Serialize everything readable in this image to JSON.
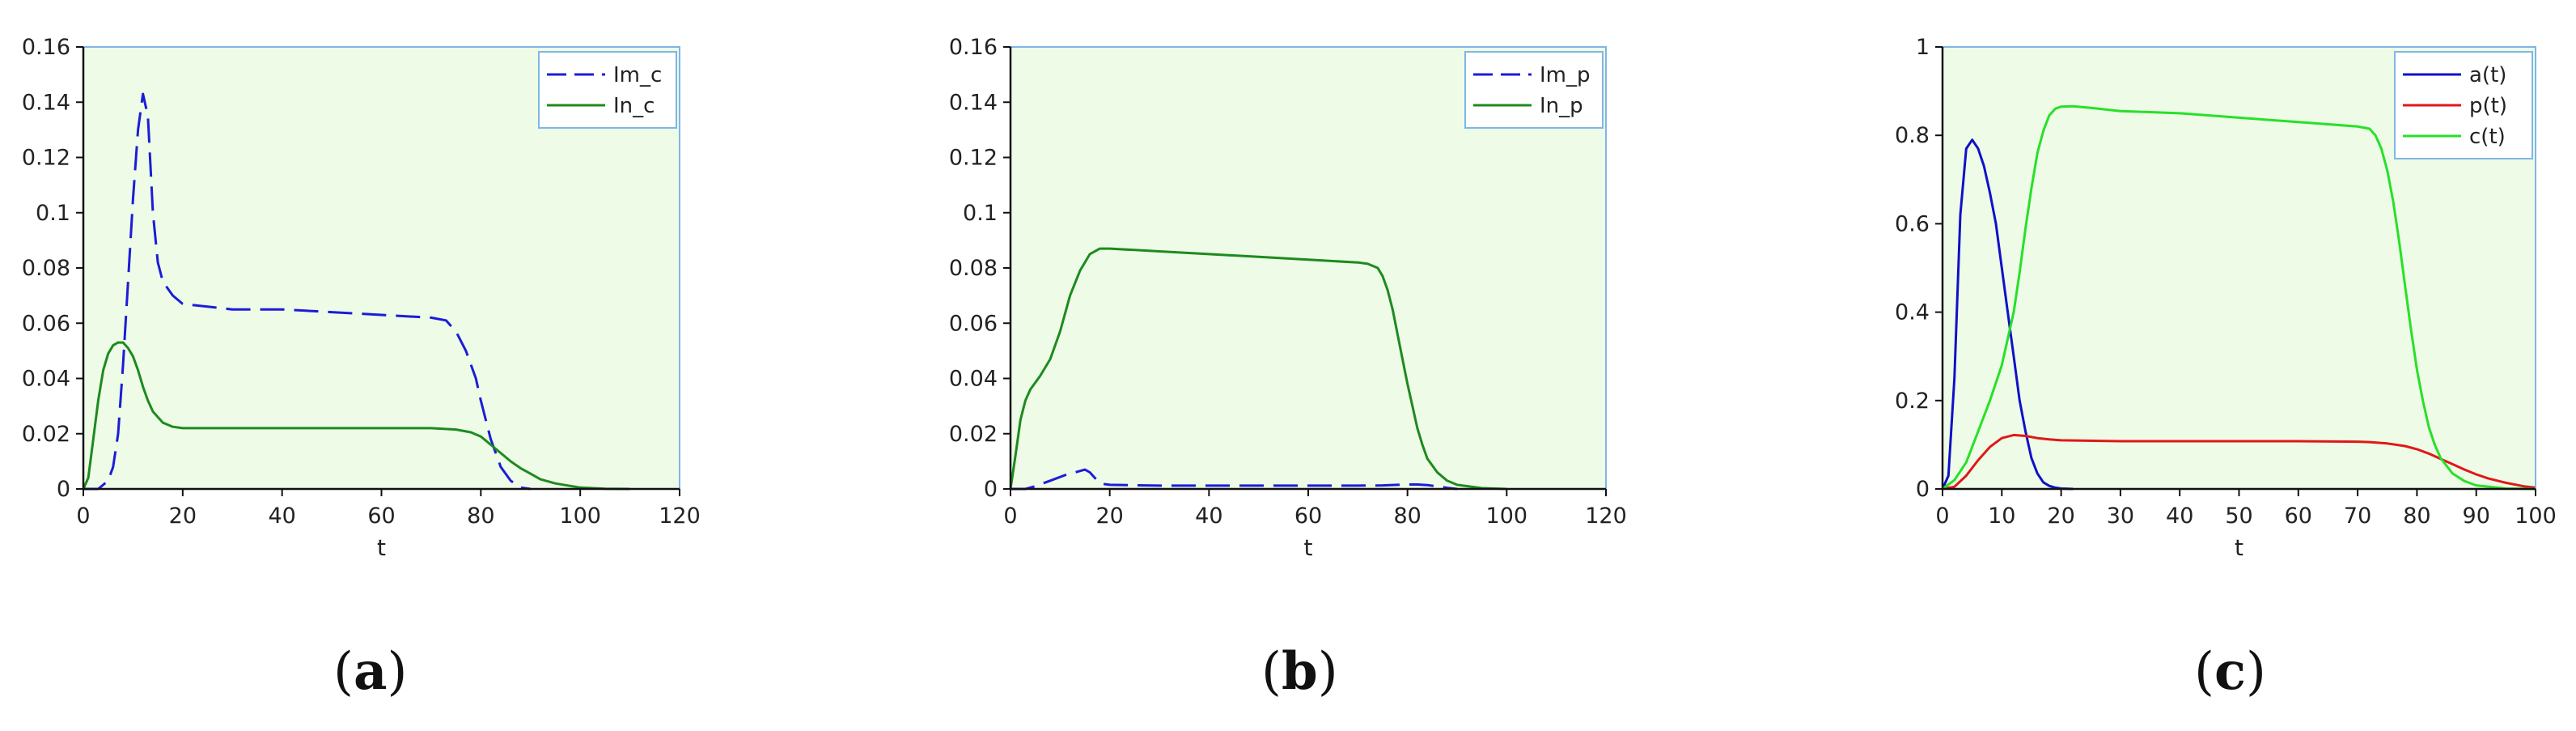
{
  "chart_data": [
    {
      "type": "line",
      "panel_label": "a",
      "xlabel": "t",
      "ylabel": "",
      "xlim": [
        0,
        120
      ],
      "ylim": [
        0,
        0.16
      ],
      "xticks": [
        "0",
        "20",
        "40",
        "60",
        "80",
        "100",
        "120"
      ],
      "yticks": [
        "0",
        "0.02",
        "0.04",
        "0.06",
        "0.08",
        "0.1",
        "0.12",
        "0.14",
        "0.16"
      ],
      "background": "#edfbe7",
      "axis_color": "#7fb6e6",
      "legend_position": "top-right",
      "series": [
        {
          "name": "Im_c",
          "color": "#1c1cd8",
          "dash": "dashed",
          "x": [
            0,
            3,
            5,
            6,
            7,
            8,
            9,
            10,
            11,
            12,
            13,
            14,
            15,
            16,
            18,
            20,
            25,
            30,
            40,
            50,
            60,
            70,
            73,
            75,
            77,
            79,
            80,
            82,
            84,
            86,
            88,
            90
          ],
          "y": [
            0,
            0,
            0.003,
            0.008,
            0.02,
            0.045,
            0.075,
            0.105,
            0.13,
            0.143,
            0.135,
            0.1,
            0.082,
            0.075,
            0.07,
            0.067,
            0.066,
            0.065,
            0.065,
            0.064,
            0.063,
            0.062,
            0.061,
            0.057,
            0.05,
            0.04,
            0.032,
            0.018,
            0.008,
            0.003,
            0.0005,
            0
          ]
        },
        {
          "name": "In_c",
          "color": "#1e8a1e",
          "dash": "solid",
          "x": [
            0,
            1,
            2,
            3,
            4,
            5,
            6,
            7,
            8,
            9,
            10,
            11,
            12,
            13,
            14,
            16,
            18,
            20,
            30,
            40,
            50,
            60,
            70,
            75,
            78,
            80,
            82,
            84,
            86,
            88,
            90,
            92,
            95,
            100,
            105,
            110
          ],
          "y": [
            0,
            0.004,
            0.018,
            0.032,
            0.043,
            0.049,
            0.052,
            0.053,
            0.053,
            0.051,
            0.048,
            0.043,
            0.037,
            0.032,
            0.028,
            0.024,
            0.0225,
            0.022,
            0.022,
            0.022,
            0.022,
            0.022,
            0.022,
            0.0215,
            0.0205,
            0.019,
            0.016,
            0.013,
            0.01,
            0.0075,
            0.0055,
            0.0035,
            0.002,
            0.0005,
            0.0001,
            0
          ]
        }
      ]
    },
    {
      "type": "line",
      "panel_label": "b",
      "xlabel": "t",
      "ylabel": "",
      "xlim": [
        0,
        120
      ],
      "ylim": [
        0,
        0.16
      ],
      "xticks": [
        "0",
        "20",
        "40",
        "60",
        "80",
        "100",
        "120"
      ],
      "yticks": [
        "0",
        "0.02",
        "0.04",
        "0.06",
        "0.08",
        "0.1",
        "0.12",
        "0.14",
        "0.16"
      ],
      "background": "#edfbe7",
      "axis_color": "#7fb6e6",
      "legend_position": "top-right",
      "series": [
        {
          "name": "Im_p",
          "color": "#1c1cd8",
          "dash": "dashed",
          "x": [
            0,
            3,
            5,
            8,
            11,
            13,
            15,
            16,
            17,
            18,
            20,
            30,
            40,
            50,
            60,
            70,
            75,
            78,
            80,
            82,
            84,
            86,
            88,
            90
          ],
          "y": [
            0,
            0,
            0.001,
            0.003,
            0.005,
            0.006,
            0.007,
            0.006,
            0.004,
            0.002,
            0.0015,
            0.0012,
            0.0012,
            0.0012,
            0.0012,
            0.0012,
            0.0013,
            0.0015,
            0.0016,
            0.0016,
            0.0014,
            0.0009,
            0.0004,
            0
          ]
        },
        {
          "name": "In_p",
          "color": "#1e8a1e",
          "dash": "solid",
          "x": [
            0,
            1,
            2,
            3,
            4,
            6,
            8,
            10,
            12,
            14,
            16,
            18,
            20,
            25,
            30,
            40,
            50,
            60,
            70,
            72,
            74,
            75,
            76,
            77,
            78,
            79,
            80,
            81,
            82,
            83,
            84,
            86,
            88,
            90,
            95,
            100
          ],
          "y": [
            0,
            0.012,
            0.025,
            0.032,
            0.036,
            0.041,
            0.047,
            0.057,
            0.07,
            0.079,
            0.085,
            0.087,
            0.087,
            0.0865,
            0.086,
            0.085,
            0.084,
            0.083,
            0.082,
            0.0815,
            0.08,
            0.077,
            0.072,
            0.065,
            0.056,
            0.047,
            0.038,
            0.03,
            0.022,
            0.016,
            0.011,
            0.006,
            0.003,
            0.0015,
            0.0003,
            0
          ]
        }
      ]
    },
    {
      "type": "line",
      "panel_label": "c",
      "xlabel": "t",
      "ylabel": "",
      "xlim": [
        0,
        100
      ],
      "ylim": [
        0,
        1
      ],
      "xticks": [
        "0",
        "10",
        "20",
        "30",
        "40",
        "50",
        "60",
        "70",
        "80",
        "90",
        "100"
      ],
      "yticks": [
        "0",
        "0.2",
        "0.4",
        "0.6",
        "0.8",
        "1"
      ],
      "background": "#edfbe7",
      "axis_color": "#7fb6e6",
      "legend_position": "top-right",
      "series": [
        {
          "name": "a(t)",
          "color": "#1010c8",
          "dash": "solid",
          "x": [
            0,
            1,
            2,
            3,
            4,
            5,
            6,
            7,
            8,
            9,
            10,
            11,
            12,
            13,
            14,
            15,
            16,
            17,
            18,
            19,
            20,
            22
          ],
          "y": [
            0,
            0.03,
            0.25,
            0.62,
            0.77,
            0.79,
            0.77,
            0.73,
            0.67,
            0.6,
            0.5,
            0.4,
            0.3,
            0.2,
            0.13,
            0.07,
            0.035,
            0.015,
            0.007,
            0.003,
            0.001,
            0
          ]
        },
        {
          "name": "p(t)",
          "color": "#e01818",
          "dash": "solid",
          "x": [
            0,
            2,
            4,
            6,
            8,
            10,
            12,
            14,
            16,
            18,
            20,
            30,
            40,
            50,
            60,
            70,
            72,
            75,
            78,
            80,
            82,
            84,
            86,
            88,
            90,
            92,
            95,
            98,
            100
          ],
          "y": [
            0,
            0.005,
            0.03,
            0.065,
            0.095,
            0.115,
            0.122,
            0.12,
            0.115,
            0.112,
            0.11,
            0.108,
            0.108,
            0.108,
            0.108,
            0.107,
            0.106,
            0.103,
            0.097,
            0.09,
            0.08,
            0.068,
            0.056,
            0.044,
            0.033,
            0.024,
            0.014,
            0.006,
            0.003
          ]
        },
        {
          "name": "c(t)",
          "color": "#28e028",
          "dash": "solid",
          "x": [
            0,
            2,
            4,
            6,
            8,
            10,
            12,
            13,
            14,
            15,
            16,
            17,
            18,
            19,
            20,
            22,
            25,
            30,
            40,
            50,
            60,
            70,
            72,
            73,
            74,
            75,
            76,
            77,
            78,
            79,
            80,
            81,
            82,
            83,
            84,
            86,
            88,
            90,
            95,
            100
          ],
          "y": [
            0,
            0.02,
            0.06,
            0.13,
            0.2,
            0.28,
            0.4,
            0.49,
            0.59,
            0.68,
            0.76,
            0.81,
            0.845,
            0.86,
            0.865,
            0.866,
            0.862,
            0.855,
            0.85,
            0.84,
            0.83,
            0.82,
            0.815,
            0.8,
            0.77,
            0.72,
            0.65,
            0.56,
            0.46,
            0.36,
            0.27,
            0.2,
            0.14,
            0.1,
            0.07,
            0.035,
            0.018,
            0.008,
            0.001,
            0
          ]
        }
      ]
    }
  ]
}
